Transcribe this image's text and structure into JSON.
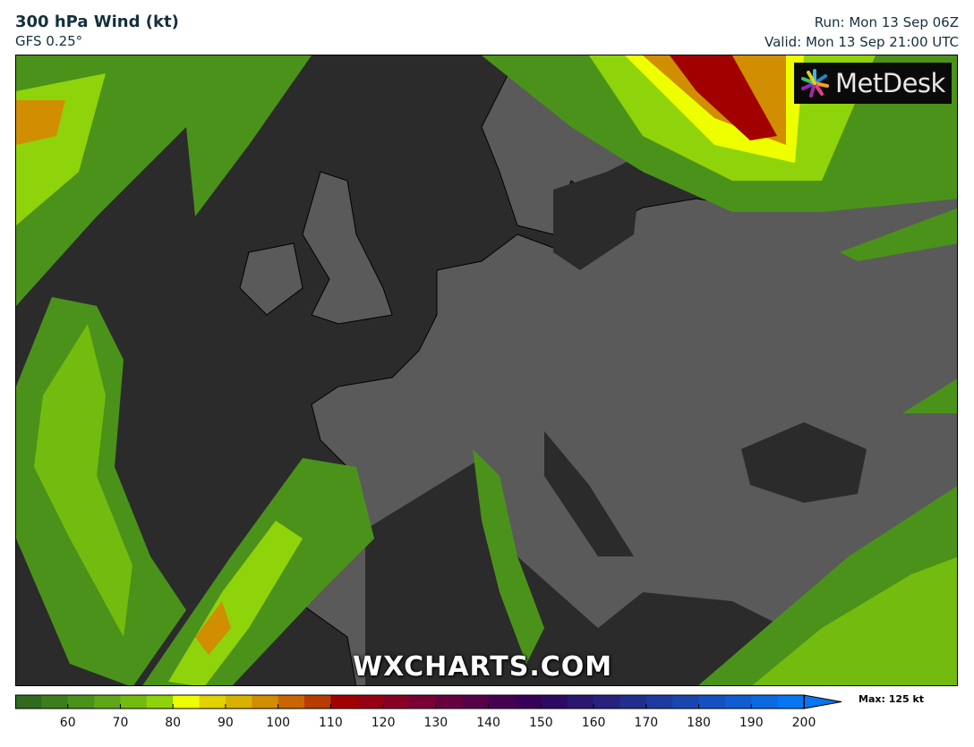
{
  "header": {
    "title": "300 hPa Wind (kt)",
    "model": "GFS 0.25°",
    "run": "Run: Mon 13 Sep 06Z",
    "valid": "Valid: Mon 13 Sep 21:00 UTC"
  },
  "map": {
    "logo_text": "MetDesk",
    "watermark": "WXCHARTS.COM",
    "land_color": "#5a5a5a",
    "sea_color": "#2b2b2b"
  },
  "colorbar": {
    "min": 50,
    "max": 200,
    "step": 5,
    "tick_labels": [
      "60",
      "70",
      "80",
      "90",
      "100",
      "110",
      "120",
      "130",
      "140",
      "150",
      "160",
      "170",
      "180",
      "190",
      "200"
    ],
    "colors": [
      "#2f6a1f",
      "#3c7f1c",
      "#4b921a",
      "#5ea716",
      "#74bb10",
      "#8fd30a",
      "#eeff00",
      "#e2d200",
      "#d9b200",
      "#d08e00",
      "#c86600",
      "#b83c00",
      "#a20000",
      "#960012",
      "#880024",
      "#780034",
      "#680040",
      "#56004a",
      "#460052",
      "#380058",
      "#2e0a62",
      "#2a1870",
      "#26227e",
      "#222e8e",
      "#1e3a9e",
      "#1a46b0",
      "#1452c2",
      "#0e5ed2",
      "#0a6ae2",
      "#0676f2"
    ],
    "max_label": "Max: 125 kt"
  }
}
